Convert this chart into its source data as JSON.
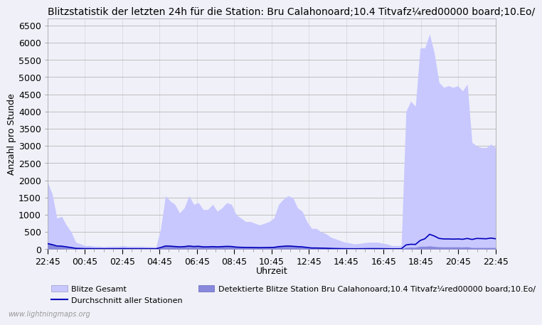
{
  "title": "Blitzstatistik der letzten 24h für die Station: Bru Calahonoard;10.4 Titvafz¼red00000 board;10.Eo/",
  "xlabel": "Uhrzeit",
  "ylabel": "Anzahl pro Stunde",
  "watermark": "www.lightningmaps.org",
  "legend_entries": [
    "Blitze Gesamt",
    "Detektierte Blitze Station Bru Calahonoard;10.4 Titvafz¼red00000 board;10.Eo/",
    "Durchschnitt aller Stationen"
  ],
  "xtick_labels": [
    "22:45",
    "00:45",
    "02:45",
    "04:45",
    "06:45",
    "08:45",
    "10:45",
    "12:45",
    "14:45",
    "16:45",
    "18:45",
    "20:45",
    "22:45"
  ],
  "ytick_values": [
    0,
    500,
    1000,
    1500,
    2000,
    2500,
    3000,
    3500,
    4000,
    4500,
    5000,
    5500,
    6000,
    6500
  ],
  "ylim": [
    0,
    6700
  ],
  "xlim": [
    0,
    48
  ],
  "background_color": "#f0f0f8",
  "plot_bg_color": "#f0f0f8",
  "grid_color_h": "#aaaaaa",
  "grid_color_v": "#aaaaaa",
  "fill_color_gesamt": "#c8c8ff",
  "fill_color_station": "#8888dd",
  "line_color_avg": "#0000bb",
  "title_fontsize": 10,
  "axis_label_fontsize": 9,
  "tick_fontsize": 9,
  "gesamt_data": [
    1950,
    1600,
    900,
    950,
    700,
    500,
    200,
    150,
    100,
    100,
    80,
    80,
    70,
    80,
    80,
    80,
    100,
    80,
    80,
    80,
    80,
    70,
    70,
    60,
    600,
    1550,
    1400,
    1300,
    1050,
    1200,
    1550,
    1300,
    1350,
    1150,
    1150,
    1300,
    1100,
    1200,
    1350,
    1300,
    1000,
    900,
    800,
    800,
    750,
    700,
    750,
    800,
    900,
    1300,
    1450,
    1550,
    1500,
    1200,
    1100,
    800,
    600,
    600,
    500,
    450,
    350,
    300,
    250,
    200,
    180,
    150,
    160,
    180,
    200,
    200,
    200,
    170,
    150,
    100,
    100,
    100,
    4000,
    4300,
    4150,
    5850,
    5850,
    6250,
    5700,
    4850,
    4700,
    4750,
    4700,
    4750,
    4600,
    4800,
    3100,
    3000,
    2950,
    2950,
    3050,
    2950
  ],
  "station_data": [
    180,
    130,
    80,
    80,
    60,
    40,
    20,
    15,
    10,
    10,
    8,
    8,
    7,
    8,
    8,
    8,
    10,
    8,
    8,
    8,
    8,
    7,
    7,
    6,
    40,
    100,
    90,
    80,
    70,
    80,
    100,
    80,
    90,
    70,
    70,
    80,
    70,
    80,
    90,
    80,
    60,
    55,
    50,
    50,
    48,
    45,
    48,
    50,
    55,
    80,
    90,
    100,
    90,
    80,
    70,
    50,
    35,
    35,
    30,
    28,
    22,
    18,
    15,
    12,
    10,
    9,
    10,
    11,
    12,
    12,
    12,
    10,
    9,
    7,
    7,
    7,
    50,
    55,
    52,
    80,
    80,
    90,
    75,
    65,
    62,
    63,
    62,
    63,
    60,
    65,
    45,
    45,
    44,
    44,
    45,
    44
  ],
  "avg_data": [
    160,
    130,
    90,
    85,
    65,
    45,
    22,
    18,
    14,
    14,
    12,
    12,
    11,
    12,
    12,
    12,
    14,
    12,
    12,
    12,
    12,
    11,
    11,
    10,
    45,
    90,
    85,
    75,
    65,
    72,
    90,
    75,
    82,
    65,
    65,
    72,
    65,
    72,
    80,
    75,
    58,
    52,
    48,
    48,
    45,
    42,
    45,
    48,
    50,
    72,
    82,
    90,
    82,
    72,
    65,
    48,
    32,
    32,
    28,
    25,
    20,
    17,
    14,
    12,
    11,
    10,
    11,
    12,
    14,
    14,
    14,
    12,
    11,
    9,
    9,
    9,
    120,
    140,
    135,
    250,
    300,
    430,
    380,
    310,
    295,
    295,
    290,
    295,
    285,
    310,
    280,
    310,
    305,
    300,
    320,
    300
  ],
  "n_points": 96
}
